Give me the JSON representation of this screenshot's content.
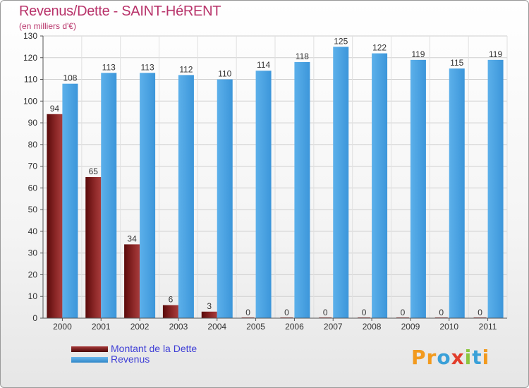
{
  "chart_data": {
    "type": "bar",
    "title": "Revenus/Dette - SAINT-HéRENT",
    "subtitle": "(en milliers d'€)",
    "categories": [
      "2000",
      "2001",
      "2002",
      "2003",
      "2004",
      "2005",
      "2006",
      "2007",
      "2008",
      "2009",
      "2010",
      "2011"
    ],
    "series": [
      {
        "name": "Montant de la Dette",
        "color": "#7a1a1a",
        "values": [
          94,
          65,
          34,
          6,
          3,
          0,
          0,
          0,
          0,
          0,
          0,
          0
        ]
      },
      {
        "name": "Revenus",
        "color": "#4aa3e3",
        "values": [
          108,
          113,
          113,
          112,
          110,
          114,
          118,
          125,
          122,
          119,
          115,
          119
        ]
      }
    ],
    "ylim": [
      0,
      130
    ],
    "yticks": [
      0,
      10,
      20,
      30,
      40,
      50,
      60,
      70,
      80,
      90,
      100,
      110,
      120,
      130
    ],
    "xlabel": "",
    "ylabel": "",
    "grid": true,
    "legend_position": "bottom-left"
  },
  "brand": {
    "name": "Proxiti",
    "letters": [
      {
        "ch": "P",
        "color": "#f29a1e"
      },
      {
        "ch": "r",
        "color": "#f29a1e"
      },
      {
        "ch": "o",
        "color": "#3aa0d8"
      },
      {
        "ch": "x",
        "color": "#e23d2b"
      },
      {
        "ch": "i",
        "color": "#8cc63f"
      },
      {
        "ch": "t",
        "color": "#3aa0d8"
      },
      {
        "ch": "i",
        "color": "#f29a1e"
      }
    ]
  }
}
